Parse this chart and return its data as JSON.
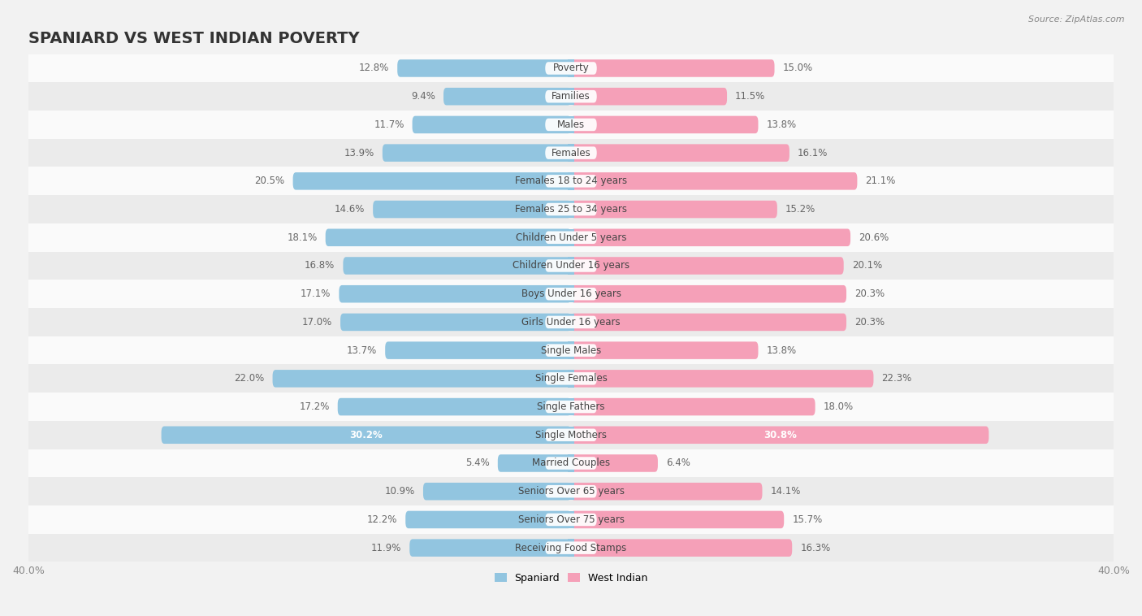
{
  "title": "SPANIARD VS WEST INDIAN POVERTY",
  "source": "Source: ZipAtlas.com",
  "categories": [
    "Poverty",
    "Families",
    "Males",
    "Females",
    "Females 18 to 24 years",
    "Females 25 to 34 years",
    "Children Under 5 years",
    "Children Under 16 years",
    "Boys Under 16 years",
    "Girls Under 16 years",
    "Single Males",
    "Single Females",
    "Single Fathers",
    "Single Mothers",
    "Married Couples",
    "Seniors Over 65 years",
    "Seniors Over 75 years",
    "Receiving Food Stamps"
  ],
  "spaniard": [
    12.8,
    9.4,
    11.7,
    13.9,
    20.5,
    14.6,
    18.1,
    16.8,
    17.1,
    17.0,
    13.7,
    22.0,
    17.2,
    30.2,
    5.4,
    10.9,
    12.2,
    11.9
  ],
  "west_indian": [
    15.0,
    11.5,
    13.8,
    16.1,
    21.1,
    15.2,
    20.6,
    20.1,
    20.3,
    20.3,
    13.8,
    22.3,
    18.0,
    30.8,
    6.4,
    14.1,
    15.7,
    16.3
  ],
  "spaniard_color": "#92c5e0",
  "west_indian_color": "#f5a0b8",
  "background_color": "#f2f2f2",
  "row_light": "#fafafa",
  "row_dark": "#ebebeb",
  "axis_max": 40.0,
  "bar_height": 0.62,
  "title_fontsize": 14,
  "cat_fontsize": 8.5,
  "value_fontsize": 8.5,
  "legend_label_spaniard": "Spaniard",
  "legend_label_west_indian": "West Indian",
  "single_mothers_idx": 13
}
